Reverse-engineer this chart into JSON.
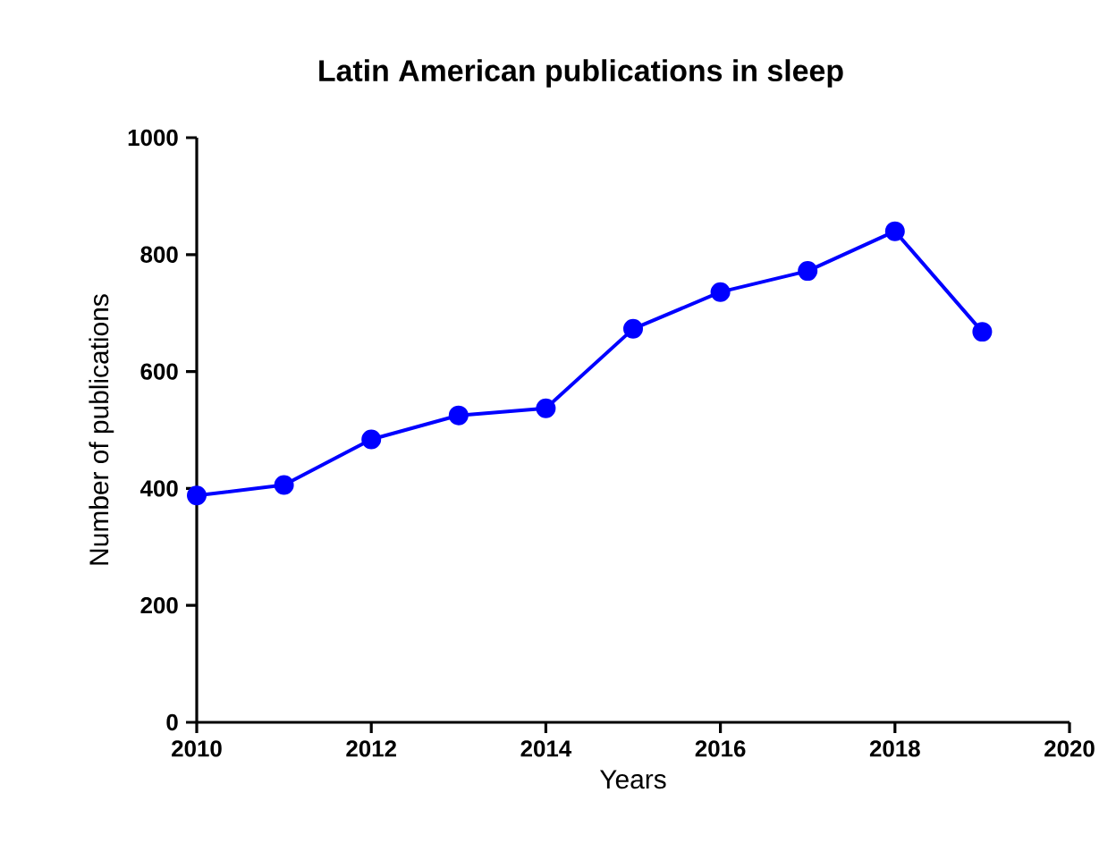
{
  "chart_data": {
    "type": "line",
    "title": "Latin American publications in sleep",
    "xlabel": "Years",
    "ylabel": "Number of publications",
    "x": [
      2010,
      2011,
      2012,
      2013,
      2014,
      2015,
      2016,
      2017,
      2018,
      2019
    ],
    "series": [
      {
        "color": "#0000ff",
        "values": [
          388,
          406,
          484,
          525,
          537,
          673,
          736,
          772,
          840,
          668
        ]
      }
    ],
    "xlim": [
      2010,
      2020
    ],
    "xticks": [
      2010,
      2012,
      2014,
      2016,
      2018,
      2020
    ],
    "ylim": [
      0,
      1000
    ],
    "yticks": [
      0,
      200,
      400,
      600,
      800,
      1000
    ],
    "grid": false,
    "marker": "circle",
    "line_style": "solid"
  }
}
